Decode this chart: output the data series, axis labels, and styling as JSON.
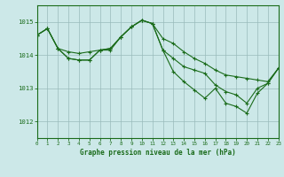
{
  "title": "Graphe pression niveau de la mer (hPa)",
  "background_color": "#cce8e8",
  "grid_color": "#99bbbb",
  "line_color": "#1a6b1a",
  "xlim": [
    0,
    23
  ],
  "ylim": [
    1011.5,
    1015.5
  ],
  "yticks": [
    1012,
    1013,
    1014,
    1015
  ],
  "xticks": [
    0,
    1,
    2,
    3,
    4,
    5,
    6,
    7,
    8,
    9,
    10,
    11,
    12,
    13,
    14,
    15,
    16,
    17,
    18,
    19,
    20,
    21,
    22,
    23
  ],
  "series": [
    [
      1014.6,
      1014.8,
      1014.2,
      1014.1,
      1014.05,
      1014.1,
      1014.15,
      1014.15,
      1014.55,
      1014.85,
      1015.05,
      1014.95,
      1014.5,
      1014.35,
      1014.1,
      1013.9,
      1013.75,
      1013.55,
      1013.4,
      1013.35,
      1013.3,
      1013.25,
      1013.2,
      1013.6
    ],
    [
      1014.6,
      1014.8,
      1014.2,
      1013.9,
      1013.85,
      1013.85,
      1014.15,
      1014.2,
      1014.55,
      1014.85,
      1015.05,
      1014.95,
      1014.15,
      1013.9,
      1013.65,
      1013.55,
      1013.45,
      1013.1,
      1012.9,
      1012.8,
      1012.55,
      1013.0,
      1013.15,
      1013.6
    ],
    [
      1014.6,
      1014.8,
      1014.2,
      1013.9,
      1013.85,
      1013.85,
      1014.15,
      1014.2,
      1014.55,
      1014.85,
      1015.05,
      1014.95,
      1014.15,
      1013.5,
      1013.2,
      1012.95,
      1012.7,
      1013.0,
      1012.55,
      1012.45,
      1012.25,
      1012.85,
      1013.15,
      1013.6
    ]
  ]
}
